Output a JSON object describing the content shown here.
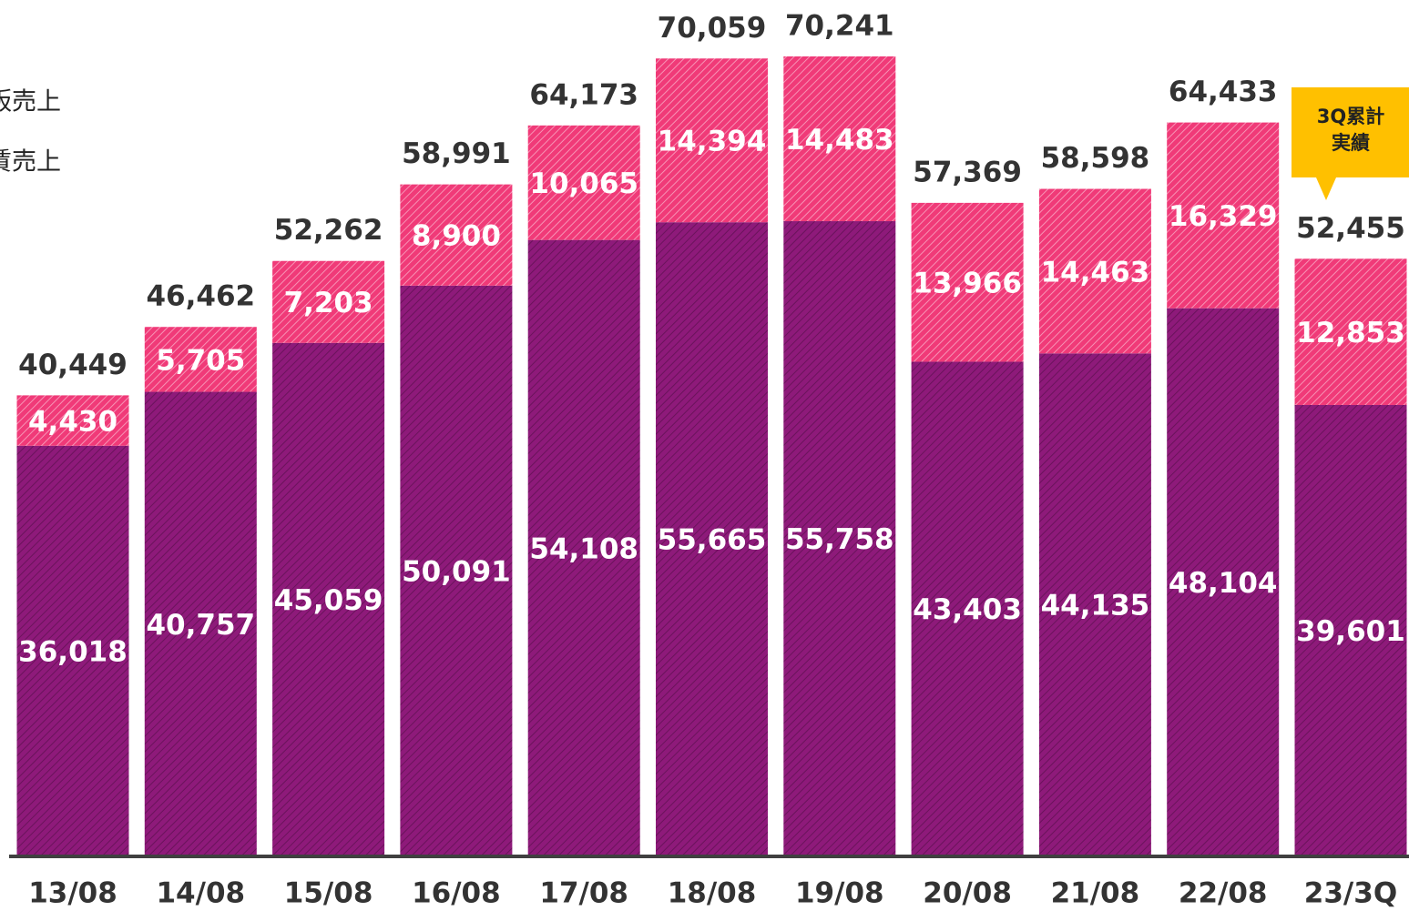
{
  "chart_data": {
    "type": "stacked_bar",
    "categories": [
      "13/08",
      "14/08",
      "15/08",
      "16/08",
      "17/08",
      "18/08",
      "19/08",
      "20/08",
      "21/08",
      "22/08",
      "23/3Q"
    ],
    "series": [
      {
        "name": "賃売上",
        "color": "#8e1a7a",
        "values": [
          36018,
          40757,
          45059,
          50091,
          54108,
          55665,
          55758,
          43403,
          44135,
          48104,
          39601
        ],
        "value_labels": [
          "36,018",
          "40,757",
          "45,059",
          "50,091",
          "54,108",
          "55,665",
          "55,758",
          "43,403",
          "44,135",
          "48,104",
          "39,601"
        ]
      },
      {
        "name": "販売上",
        "color": "#f03a78",
        "values": [
          4430,
          5705,
          7203,
          8900,
          10065,
          14394,
          14483,
          13966,
          14463,
          16329,
          12853
        ],
        "value_labels": [
          "4,430",
          "5,705",
          "7,203",
          "8,900",
          "10,065",
          "14,394",
          "14,483",
          "13,966",
          "14,463",
          "16,329",
          "12,853"
        ]
      }
    ],
    "totals": [
      40449,
      46462,
      52262,
      58991,
      64173,
      70059,
      70241,
      57369,
      58598,
      64433,
      52455
    ],
    "total_labels": [
      "40,449",
      "46,462",
      "52,262",
      "58,991",
      "64,173",
      "70,059",
      "70,241",
      "57,369",
      "58,598",
      "64,433",
      "52,455"
    ],
    "annotation": [
      "3Q累計",
      "実績"
    ],
    "ylim": [
      0,
      72000
    ]
  }
}
